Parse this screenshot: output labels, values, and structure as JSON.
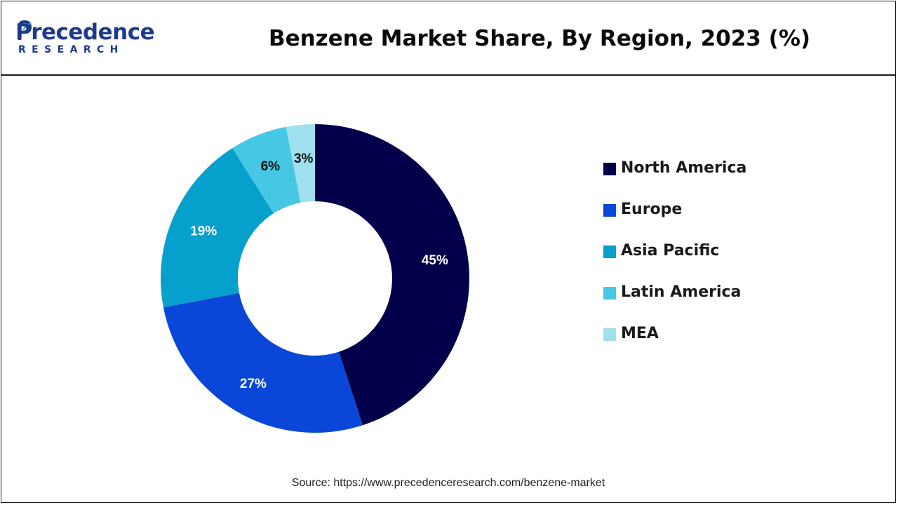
{
  "header": {
    "logo_text": "Precedence",
    "logo_subtext": "RESEARCH"
  },
  "chart_data": {
    "type": "pie",
    "style": "donut",
    "title": "Benzene Market Share, By Region, 2023 (%)",
    "categories": [
      "North America",
      "Europe",
      "Asia Pacific",
      "Latin America",
      "MEA"
    ],
    "values": [
      45,
      27,
      19,
      6,
      3
    ],
    "labels": [
      "45%",
      "27%",
      "19%",
      "6%",
      "3%"
    ],
    "colors": [
      "#02004a",
      "#0a47d8",
      "#05a0cc",
      "#46c7e3",
      "#9fe0ef"
    ],
    "label_colors": [
      "#ffffff",
      "#ffffff",
      "#ffffff",
      "#111111",
      "#111111"
    ],
    "legend_position": "right"
  },
  "footer": {
    "source": "Source: https://www.precedenceresearch.com/benzene-market"
  }
}
